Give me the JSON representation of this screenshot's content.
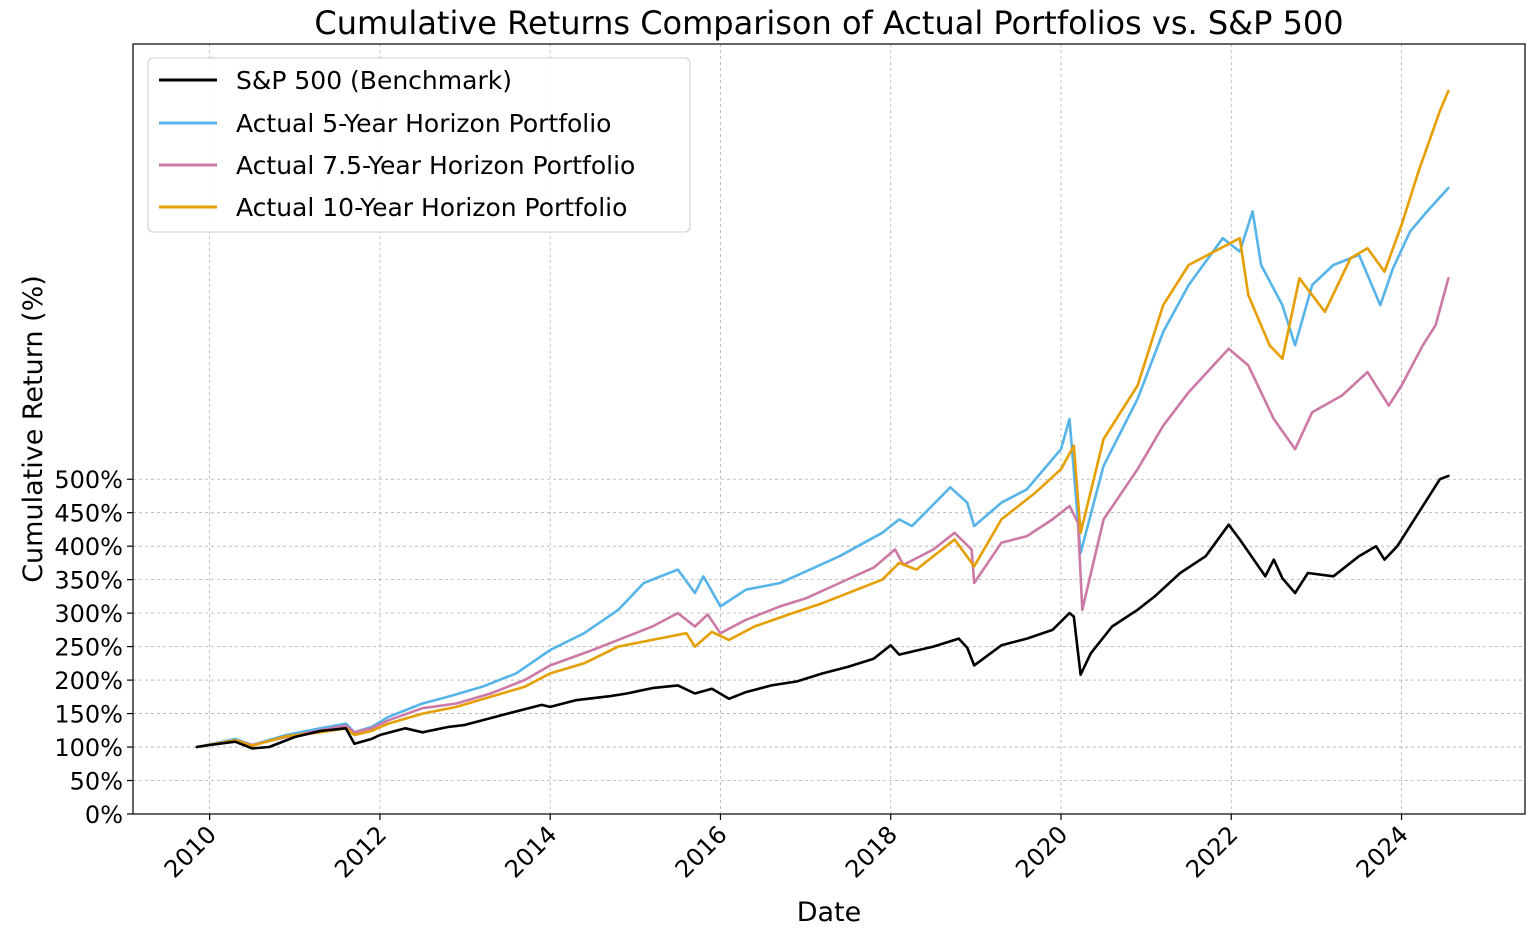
{
  "chart_data": {
    "type": "line",
    "title": "Cumulative Returns Comparison of Actual Portfolios vs. S&P 500",
    "xlabel": "Date",
    "ylabel": "Cumulative Return (%)",
    "xlim": [
      2009.1,
      2025.45
    ],
    "ylim": [
      0,
      1150
    ],
    "x_ticks": [
      "2010",
      "2012",
      "2014",
      "2016",
      "2018",
      "2020",
      "2022",
      "2024"
    ],
    "y_ticks": [
      0,
      50,
      100,
      150,
      200,
      250,
      300,
      350,
      400,
      450,
      500
    ],
    "y_tick_labels": [
      "0%",
      "50%",
      "100%",
      "150%",
      "200%",
      "250%",
      "300%",
      "350%",
      "400%",
      "450%",
      "500%"
    ],
    "grid": true,
    "legend_position": "upper-left",
    "series": [
      {
        "name": "S&P 500 (Benchmark)",
        "color": "#000000",
        "points": [
          [
            2009.85,
            100
          ],
          [
            2010.0,
            103
          ],
          [
            2010.3,
            108
          ],
          [
            2010.5,
            98
          ],
          [
            2010.7,
            100
          ],
          [
            2011.0,
            115
          ],
          [
            2011.3,
            124
          ],
          [
            2011.6,
            128
          ],
          [
            2011.7,
            105
          ],
          [
            2011.9,
            112
          ],
          [
            2012.0,
            118
          ],
          [
            2012.3,
            128
          ],
          [
            2012.5,
            122
          ],
          [
            2012.8,
            130
          ],
          [
            2013.0,
            133
          ],
          [
            2013.5,
            150
          ],
          [
            2013.9,
            163
          ],
          [
            2014.0,
            160
          ],
          [
            2014.3,
            170
          ],
          [
            2014.7,
            176
          ],
          [
            2014.9,
            180
          ],
          [
            2015.2,
            188
          ],
          [
            2015.5,
            192
          ],
          [
            2015.7,
            180
          ],
          [
            2015.9,
            187
          ],
          [
            2016.1,
            172
          ],
          [
            2016.3,
            182
          ],
          [
            2016.6,
            192
          ],
          [
            2016.9,
            198
          ],
          [
            2017.2,
            210
          ],
          [
            2017.5,
            220
          ],
          [
            2017.8,
            232
          ],
          [
            2018.0,
            252
          ],
          [
            2018.1,
            238
          ],
          [
            2018.5,
            250
          ],
          [
            2018.8,
            262
          ],
          [
            2018.9,
            248
          ],
          [
            2018.98,
            222
          ],
          [
            2019.3,
            252
          ],
          [
            2019.6,
            262
          ],
          [
            2019.9,
            275
          ],
          [
            2020.1,
            300
          ],
          [
            2020.15,
            295
          ],
          [
            2020.23,
            208
          ],
          [
            2020.35,
            240
          ],
          [
            2020.6,
            280
          ],
          [
            2020.9,
            305
          ],
          [
            2021.1,
            325
          ],
          [
            2021.4,
            360
          ],
          [
            2021.7,
            385
          ],
          [
            2021.97,
            432
          ],
          [
            2022.1,
            410
          ],
          [
            2022.4,
            355
          ],
          [
            2022.5,
            380
          ],
          [
            2022.6,
            352
          ],
          [
            2022.75,
            330
          ],
          [
            2022.9,
            360
          ],
          [
            2023.2,
            355
          ],
          [
            2023.5,
            385
          ],
          [
            2023.7,
            400
          ],
          [
            2023.8,
            380
          ],
          [
            2023.95,
            400
          ],
          [
            2024.2,
            450
          ],
          [
            2024.3,
            470
          ],
          [
            2024.45,
            500
          ],
          [
            2024.55,
            505
          ]
        ]
      },
      {
        "name": "Actual 5-Year Horizon Portfolio",
        "color": "#56b4e9",
        "points": [
          [
            2009.85,
            100
          ],
          [
            2010.3,
            112
          ],
          [
            2010.5,
            103
          ],
          [
            2010.9,
            118
          ],
          [
            2011.3,
            128
          ],
          [
            2011.6,
            135
          ],
          [
            2011.7,
            122
          ],
          [
            2011.9,
            130
          ],
          [
            2012.1,
            145
          ],
          [
            2012.5,
            165
          ],
          [
            2012.8,
            175
          ],
          [
            2013.2,
            190
          ],
          [
            2013.6,
            210
          ],
          [
            2014.0,
            245
          ],
          [
            2014.4,
            270
          ],
          [
            2014.8,
            305
          ],
          [
            2015.1,
            345
          ],
          [
            2015.5,
            365
          ],
          [
            2015.7,
            330
          ],
          [
            2015.8,
            355
          ],
          [
            2016.0,
            310
          ],
          [
            2016.3,
            335
          ],
          [
            2016.7,
            345
          ],
          [
            2017.0,
            362
          ],
          [
            2017.4,
            385
          ],
          [
            2017.9,
            420
          ],
          [
            2018.1,
            440
          ],
          [
            2018.25,
            430
          ],
          [
            2018.7,
            488
          ],
          [
            2018.9,
            465
          ],
          [
            2018.98,
            430
          ],
          [
            2019.3,
            465
          ],
          [
            2019.6,
            485
          ],
          [
            2020.0,
            545
          ],
          [
            2020.1,
            590
          ],
          [
            2020.23,
            390
          ],
          [
            2020.5,
            520
          ],
          [
            2020.9,
            620
          ],
          [
            2021.2,
            720
          ],
          [
            2021.5,
            790
          ],
          [
            2021.9,
            860
          ],
          [
            2022.1,
            840
          ],
          [
            2022.25,
            900
          ],
          [
            2022.35,
            820
          ],
          [
            2022.6,
            760
          ],
          [
            2022.75,
            700
          ],
          [
            2022.95,
            790
          ],
          [
            2023.2,
            820
          ],
          [
            2023.5,
            835
          ],
          [
            2023.75,
            760
          ],
          [
            2023.9,
            815
          ],
          [
            2024.1,
            870
          ],
          [
            2024.3,
            900
          ],
          [
            2024.55,
            935
          ]
        ]
      },
      {
        "name": "Actual 7.5-Year Horizon Portfolio",
        "color": "#cc79a7",
        "points": [
          [
            2009.85,
            100
          ],
          [
            2010.3,
            110
          ],
          [
            2010.5,
            103
          ],
          [
            2010.9,
            115
          ],
          [
            2011.3,
            125
          ],
          [
            2011.6,
            132
          ],
          [
            2011.7,
            122
          ],
          [
            2011.9,
            128
          ],
          [
            2012.1,
            140
          ],
          [
            2012.5,
            158
          ],
          [
            2012.9,
            165
          ],
          [
            2013.3,
            180
          ],
          [
            2013.7,
            200
          ],
          [
            2014.0,
            222
          ],
          [
            2014.5,
            245
          ],
          [
            2014.9,
            265
          ],
          [
            2015.2,
            280
          ],
          [
            2015.5,
            300
          ],
          [
            2015.7,
            280
          ],
          [
            2015.85,
            298
          ],
          [
            2016.0,
            270
          ],
          [
            2016.3,
            290
          ],
          [
            2016.7,
            310
          ],
          [
            2017.0,
            322
          ],
          [
            2017.4,
            345
          ],
          [
            2017.8,
            368
          ],
          [
            2018.05,
            395
          ],
          [
            2018.15,
            372
          ],
          [
            2018.5,
            395
          ],
          [
            2018.75,
            420
          ],
          [
            2018.95,
            395
          ],
          [
            2018.98,
            345
          ],
          [
            2019.3,
            405
          ],
          [
            2019.6,
            415
          ],
          [
            2019.9,
            440
          ],
          [
            2020.1,
            460
          ],
          [
            2020.2,
            435
          ],
          [
            2020.25,
            305
          ],
          [
            2020.5,
            440
          ],
          [
            2020.9,
            515
          ],
          [
            2021.2,
            580
          ],
          [
            2021.5,
            630
          ],
          [
            2021.97,
            695
          ],
          [
            2022.2,
            670
          ],
          [
            2022.5,
            590
          ],
          [
            2022.75,
            545
          ],
          [
            2022.95,
            600
          ],
          [
            2023.3,
            625
          ],
          [
            2023.6,
            660
          ],
          [
            2023.85,
            610
          ],
          [
            2024.0,
            640
          ],
          [
            2024.25,
            700
          ],
          [
            2024.4,
            730
          ],
          [
            2024.55,
            800
          ]
        ]
      },
      {
        "name": "Actual 10-Year Horizon Portfolio",
        "color": "#e69f00",
        "points": [
          [
            2009.85,
            100
          ],
          [
            2010.3,
            110
          ],
          [
            2010.5,
            102
          ],
          [
            2010.9,
            116
          ],
          [
            2011.3,
            122
          ],
          [
            2011.6,
            128
          ],
          [
            2011.7,
            118
          ],
          [
            2011.9,
            124
          ],
          [
            2012.1,
            135
          ],
          [
            2012.5,
            150
          ],
          [
            2012.9,
            160
          ],
          [
            2013.3,
            175
          ],
          [
            2013.7,
            190
          ],
          [
            2014.0,
            210
          ],
          [
            2014.4,
            225
          ],
          [
            2014.8,
            250
          ],
          [
            2015.2,
            260
          ],
          [
            2015.6,
            270
          ],
          [
            2015.7,
            250
          ],
          [
            2015.9,
            272
          ],
          [
            2016.1,
            260
          ],
          [
            2016.4,
            280
          ],
          [
            2016.8,
            298
          ],
          [
            2017.2,
            315
          ],
          [
            2017.6,
            335
          ],
          [
            2017.9,
            350
          ],
          [
            2018.1,
            375
          ],
          [
            2018.3,
            365
          ],
          [
            2018.75,
            410
          ],
          [
            2018.98,
            370
          ],
          [
            2019.3,
            440
          ],
          [
            2019.7,
            480
          ],
          [
            2020.0,
            515
          ],
          [
            2020.15,
            550
          ],
          [
            2020.23,
            420
          ],
          [
            2020.5,
            560
          ],
          [
            2020.9,
            640
          ],
          [
            2021.2,
            760
          ],
          [
            2021.5,
            820
          ],
          [
            2021.95,
            850
          ],
          [
            2022.1,
            860
          ],
          [
            2022.2,
            775
          ],
          [
            2022.45,
            700
          ],
          [
            2022.6,
            680
          ],
          [
            2022.8,
            800
          ],
          [
            2023.1,
            750
          ],
          [
            2023.4,
            830
          ],
          [
            2023.6,
            845
          ],
          [
            2023.8,
            810
          ],
          [
            2024.0,
            880
          ],
          [
            2024.2,
            960
          ],
          [
            2024.45,
            1050
          ],
          [
            2024.55,
            1080
          ]
        ]
      }
    ]
  }
}
